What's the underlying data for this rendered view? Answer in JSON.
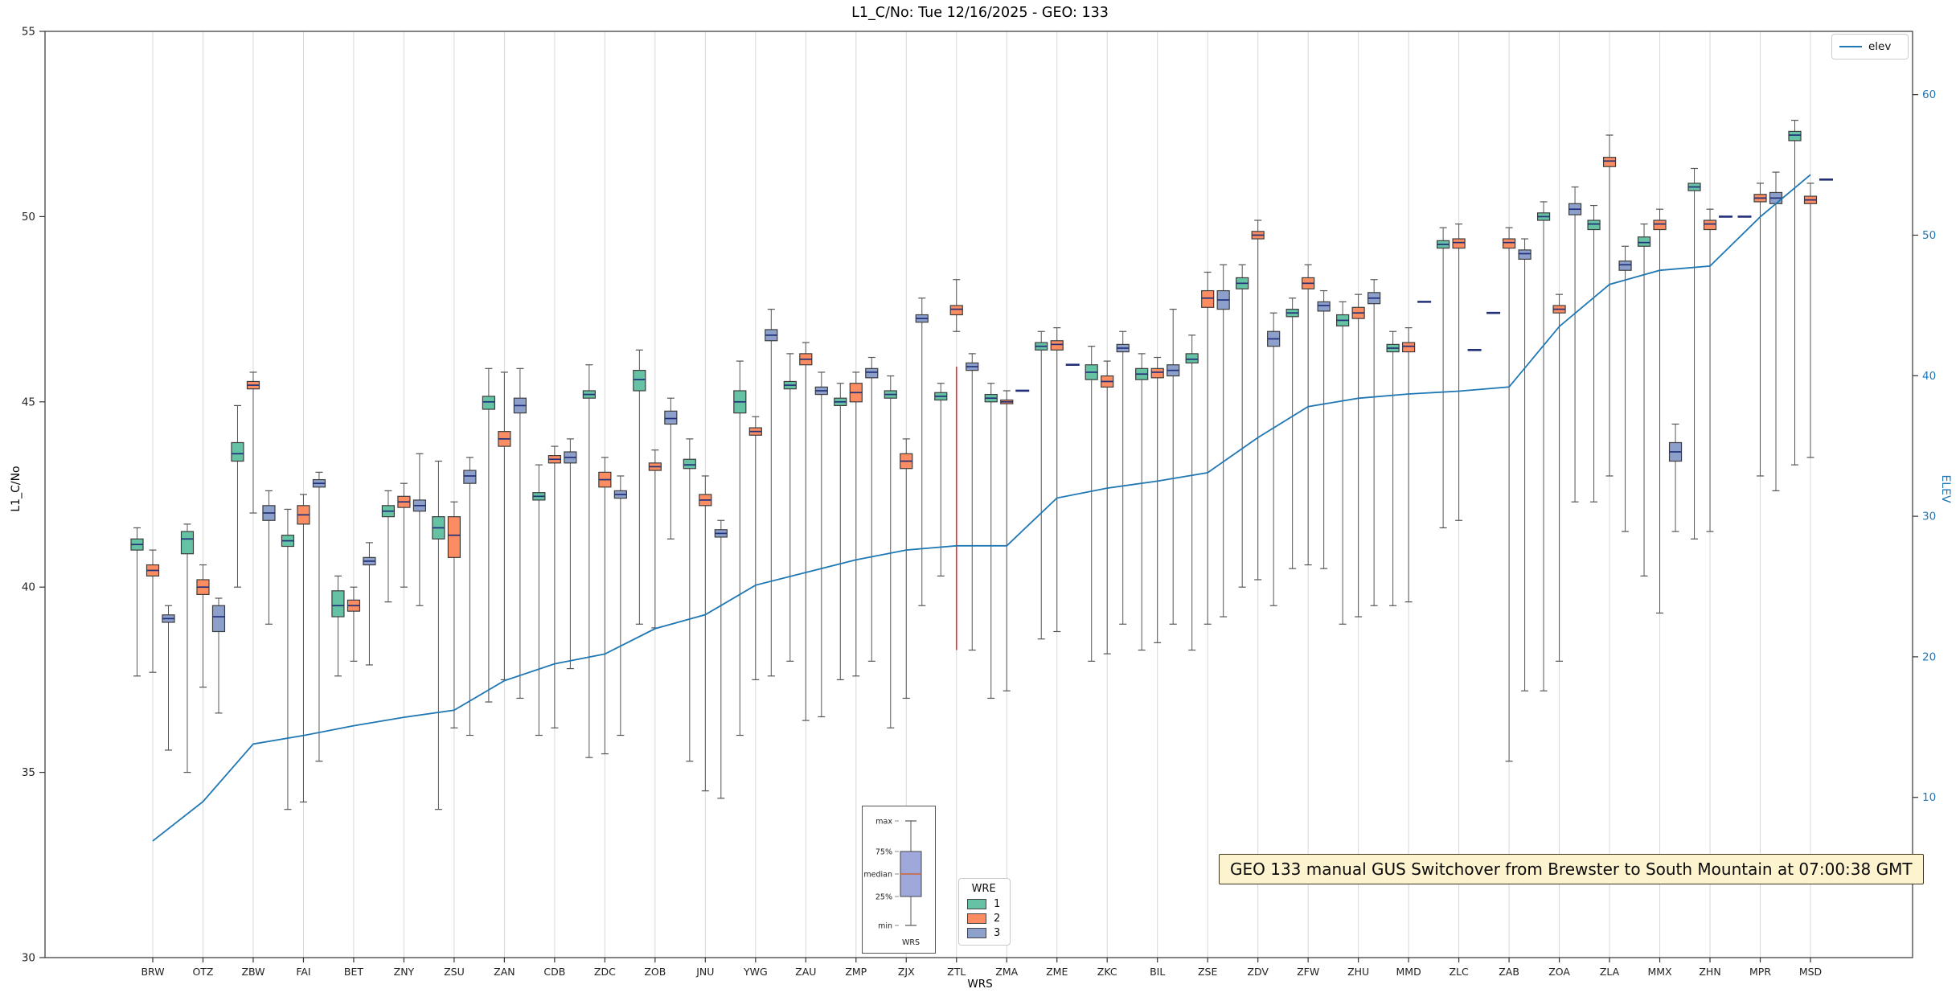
{
  "title": "L1_C/No: Tue 12/16/2025 - GEO: 133",
  "annotation": {
    "text": "GEO 133 manual GUS Switchover from Brewster to South Mountain at 07:00:38 GMT"
  },
  "legend": {
    "elev_label": "elev",
    "wre_title": "WRE",
    "wre_entries": [
      {
        "label": "1"
      },
      {
        "label": "2"
      },
      {
        "label": "3"
      }
    ]
  },
  "inset": {
    "labels": [
      "max",
      "75%",
      "median",
      "25%",
      "min"
    ],
    "xlabel": "WRS"
  },
  "chart_data": {
    "type": "boxplot+line",
    "title": "L1_C/No: Tue 12/16/2025 - GEO: 133",
    "xlabel": "WRS",
    "ylabel": "L1_C/No",
    "y2label": "ELEV",
    "ylim": [
      30,
      55
    ],
    "y2lim": [
      -1.4,
      64.5
    ],
    "yticks": [
      30,
      35,
      40,
      45,
      50,
      55
    ],
    "y2ticks": [
      10,
      20,
      30,
      40,
      50,
      60
    ],
    "grid": "vertical",
    "legend_position": "upper-right",
    "categories": [
      "BRW",
      "OTZ",
      "ZBW",
      "FAI",
      "BET",
      "ZNY",
      "ZSU",
      "ZAN",
      "CDB",
      "ZDC",
      "ZOB",
      "JNU",
      "YWG",
      "ZAU",
      "ZMP",
      "ZJX",
      "ZTL",
      "ZMA",
      "ZME",
      "ZKC",
      "BIL",
      "ZSE",
      "ZDV",
      "ZFW",
      "ZHU",
      "MMD",
      "ZLC",
      "ZAB",
      "ZOA",
      "ZLA",
      "MMX",
      "ZHN",
      "MPR",
      "MSD"
    ],
    "box_value_order": [
      "whisker_low",
      "q1",
      "median",
      "q3",
      "whisker_high"
    ],
    "series": [
      {
        "name": "1",
        "color": "#66c2a5",
        "boxes": [
          [
            37.6,
            41.0,
            41.15,
            41.3,
            41.6
          ],
          [
            35.0,
            40.9,
            41.3,
            41.5,
            41.7
          ],
          [
            40.0,
            43.4,
            43.6,
            43.9,
            44.9
          ],
          [
            34.0,
            41.1,
            41.25,
            41.4,
            42.1
          ],
          [
            37.6,
            39.2,
            39.5,
            39.9,
            40.3
          ],
          [
            39.6,
            41.9,
            42.05,
            42.2,
            42.6
          ],
          [
            34.0,
            41.3,
            41.6,
            41.9,
            43.4
          ],
          [
            36.9,
            44.8,
            45.0,
            45.15,
            45.9
          ],
          [
            36.0,
            42.35,
            42.45,
            42.55,
            43.3
          ],
          [
            35.4,
            45.1,
            45.2,
            45.3,
            46.0
          ],
          [
            39.0,
            45.3,
            45.6,
            45.85,
            46.4
          ],
          [
            35.3,
            43.2,
            43.3,
            43.45,
            44.0
          ],
          [
            36.0,
            44.7,
            45.0,
            45.3,
            46.1
          ],
          [
            38.0,
            45.35,
            45.45,
            45.55,
            46.3
          ],
          [
            37.5,
            44.9,
            45.0,
            45.1,
            45.5
          ],
          [
            36.2,
            45.1,
            45.2,
            45.3,
            45.7
          ],
          [
            40.3,
            45.05,
            45.15,
            45.25,
            45.5
          ],
          [
            37.0,
            45.0,
            45.1,
            45.2,
            45.5
          ],
          [
            38.6,
            46.4,
            46.5,
            46.6,
            46.9
          ],
          [
            38.0,
            45.6,
            45.8,
            46.0,
            46.5
          ],
          [
            38.3,
            45.6,
            45.75,
            45.9,
            46.3
          ],
          [
            38.3,
            46.05,
            46.15,
            46.3,
            46.8
          ],
          [
            40.0,
            48.05,
            48.2,
            48.35,
            48.7
          ],
          [
            40.5,
            47.3,
            47.4,
            47.5,
            47.8
          ],
          [
            39.0,
            47.05,
            47.2,
            47.35,
            47.7
          ],
          [
            39.5,
            46.35,
            46.45,
            46.55,
            46.9
          ],
          [
            41.6,
            49.15,
            49.25,
            49.35,
            49.7
          ],
          [
            47.4,
            47.4,
            47.4,
            47.4,
            47.4
          ],
          [
            37.2,
            49.9,
            50.0,
            50.1,
            50.4
          ],
          [
            42.3,
            49.65,
            49.8,
            49.9,
            50.3
          ],
          [
            40.3,
            49.2,
            49.3,
            49.45,
            49.8
          ],
          [
            41.3,
            50.7,
            50.8,
            50.9,
            51.3
          ],
          [
            50.0,
            50.0,
            50.0,
            50.0,
            50.0
          ],
          [
            43.3,
            52.05,
            52.2,
            52.3,
            52.6
          ]
        ]
      },
      {
        "name": "2",
        "color": "#fc8d62",
        "boxes": [
          [
            37.7,
            40.3,
            40.45,
            40.6,
            41.0
          ],
          [
            37.3,
            39.8,
            40.0,
            40.2,
            40.6
          ],
          [
            42.0,
            45.35,
            45.45,
            45.55,
            45.8
          ],
          [
            34.2,
            41.7,
            41.95,
            42.2,
            42.5
          ],
          [
            38.0,
            39.35,
            39.5,
            39.65,
            40.0
          ],
          [
            40.0,
            42.15,
            42.3,
            42.45,
            42.8
          ],
          [
            36.2,
            40.8,
            41.4,
            41.9,
            42.3
          ],
          [
            37.5,
            43.8,
            44.0,
            44.2,
            45.8
          ],
          [
            36.2,
            43.35,
            43.45,
            43.55,
            43.8
          ],
          [
            35.5,
            42.7,
            42.9,
            43.1,
            43.5
          ],
          [
            38.9,
            43.15,
            43.25,
            43.35,
            43.7
          ],
          [
            34.5,
            42.2,
            42.35,
            42.5,
            43.0
          ],
          [
            37.5,
            44.1,
            44.2,
            44.3,
            44.6
          ],
          [
            36.4,
            46.0,
            46.15,
            46.3,
            46.6
          ],
          [
            37.6,
            45.0,
            45.25,
            45.5,
            45.8
          ],
          [
            37.0,
            43.2,
            43.4,
            43.6,
            44.0
          ],
          [
            46.9,
            47.35,
            47.5,
            47.6,
            48.3
          ],
          [
            37.2,
            44.95,
            45.0,
            45.05,
            45.3
          ],
          [
            38.8,
            46.4,
            46.55,
            46.65,
            47.0
          ],
          [
            38.2,
            45.4,
            45.55,
            45.7,
            46.1
          ],
          [
            38.5,
            45.65,
            45.8,
            45.9,
            46.2
          ],
          [
            39.0,
            47.55,
            47.8,
            48.0,
            48.5
          ],
          [
            40.2,
            49.4,
            49.5,
            49.6,
            49.9
          ],
          [
            40.6,
            48.05,
            48.2,
            48.35,
            48.7
          ],
          [
            39.2,
            47.25,
            47.4,
            47.55,
            47.9
          ],
          [
            39.6,
            46.35,
            46.5,
            46.6,
            47.0
          ],
          [
            41.8,
            49.15,
            49.3,
            49.4,
            49.8
          ],
          [
            35.3,
            49.15,
            49.3,
            49.4,
            49.7
          ],
          [
            38.0,
            47.4,
            47.5,
            47.6,
            47.9
          ],
          [
            43.0,
            51.35,
            51.5,
            51.6,
            52.2
          ],
          [
            39.3,
            49.65,
            49.8,
            49.9,
            50.2
          ],
          [
            41.5,
            49.65,
            49.8,
            49.9,
            50.2
          ],
          [
            43.0,
            50.4,
            50.5,
            50.6,
            50.9
          ],
          [
            43.5,
            50.35,
            50.45,
            50.55,
            50.9
          ]
        ]
      },
      {
        "name": "3",
        "color": "#8da0cb",
        "boxes": [
          [
            35.6,
            39.05,
            39.15,
            39.25,
            39.5
          ],
          [
            36.6,
            38.8,
            39.2,
            39.5,
            39.7
          ],
          [
            39.0,
            41.8,
            42.0,
            42.2,
            42.6
          ],
          [
            35.3,
            42.7,
            42.8,
            42.9,
            43.1
          ],
          [
            37.9,
            40.6,
            40.7,
            40.8,
            41.2
          ],
          [
            39.5,
            42.05,
            42.2,
            42.35,
            43.6
          ],
          [
            36.0,
            42.8,
            43.0,
            43.15,
            43.5
          ],
          [
            37.0,
            44.7,
            44.9,
            45.1,
            45.9
          ],
          [
            37.8,
            43.35,
            43.5,
            43.65,
            44.0
          ],
          [
            36.0,
            42.4,
            42.5,
            42.6,
            43.0
          ],
          [
            41.3,
            44.4,
            44.55,
            44.75,
            45.1
          ],
          [
            34.3,
            41.35,
            41.45,
            41.55,
            41.8
          ],
          [
            37.6,
            46.65,
            46.8,
            46.95,
            47.5
          ],
          [
            36.5,
            45.2,
            45.3,
            45.4,
            45.8
          ],
          [
            38.0,
            45.65,
            45.8,
            45.9,
            46.2
          ],
          [
            39.5,
            47.15,
            47.25,
            47.35,
            47.8
          ],
          [
            38.3,
            45.85,
            45.95,
            46.05,
            46.3
          ],
          [
            45.3,
            45.3,
            45.3,
            45.3,
            45.3
          ],
          [
            46.0,
            46.0,
            46.0,
            46.0,
            46.0
          ],
          [
            39.0,
            46.35,
            46.45,
            46.55,
            46.9
          ],
          [
            39.0,
            45.7,
            45.85,
            46.0,
            47.5
          ],
          [
            39.2,
            47.5,
            47.75,
            48.0,
            48.7
          ],
          [
            39.5,
            46.5,
            46.7,
            46.9,
            47.4
          ],
          [
            40.5,
            47.45,
            47.6,
            47.7,
            48.0
          ],
          [
            39.5,
            47.65,
            47.8,
            47.95,
            48.3
          ],
          [
            47.7,
            47.7,
            47.7,
            47.7,
            47.7
          ],
          [
            46.4,
            46.4,
            46.4,
            46.4,
            46.4
          ],
          [
            37.2,
            48.85,
            49.0,
            49.1,
            49.4
          ],
          [
            42.3,
            50.05,
            50.2,
            50.35,
            50.8
          ],
          [
            41.5,
            48.55,
            48.7,
            48.8,
            49.2
          ],
          [
            41.5,
            43.4,
            43.65,
            43.9,
            44.4
          ],
          [
            50.0,
            50.0,
            50.0,
            50.0,
            50.0
          ],
          [
            42.6,
            50.35,
            50.5,
            50.65,
            51.2
          ],
          [
            51.0,
            51.0,
            51.0,
            51.0,
            51.0
          ]
        ]
      }
    ],
    "elev_line": {
      "name": "elev",
      "color": "#1f77b4",
      "values": [
        6.9,
        9.7,
        13.8,
        14.4,
        15.1,
        15.7,
        16.2,
        18.3,
        19.5,
        20.2,
        22.0,
        23.0,
        25.1,
        26.0,
        26.9,
        27.6,
        27.9,
        27.9,
        31.3,
        32.0,
        32.5,
        33.1,
        35.6,
        37.8,
        38.4,
        38.7,
        38.9,
        39.2,
        43.5,
        46.5,
        47.5,
        47.8,
        51.3,
        54.3
      ]
    },
    "red_marker": {
      "category": "ZTL",
      "from": 38.3,
      "to": 45.95,
      "color": "#e53935"
    },
    "style_colors": {
      "median": "#22307a",
      "box_edge": "#3c3c3c",
      "whisker": "#555555",
      "grid": "#d8d8d8",
      "spine": "#333333",
      "right_axis_text": "#1f77b4",
      "annotation_bg": "#fdf3cf",
      "annotation_border": "#3e3420",
      "inset_box_fill": "#9fa8da",
      "inset_median": "#cc6633"
    }
  }
}
